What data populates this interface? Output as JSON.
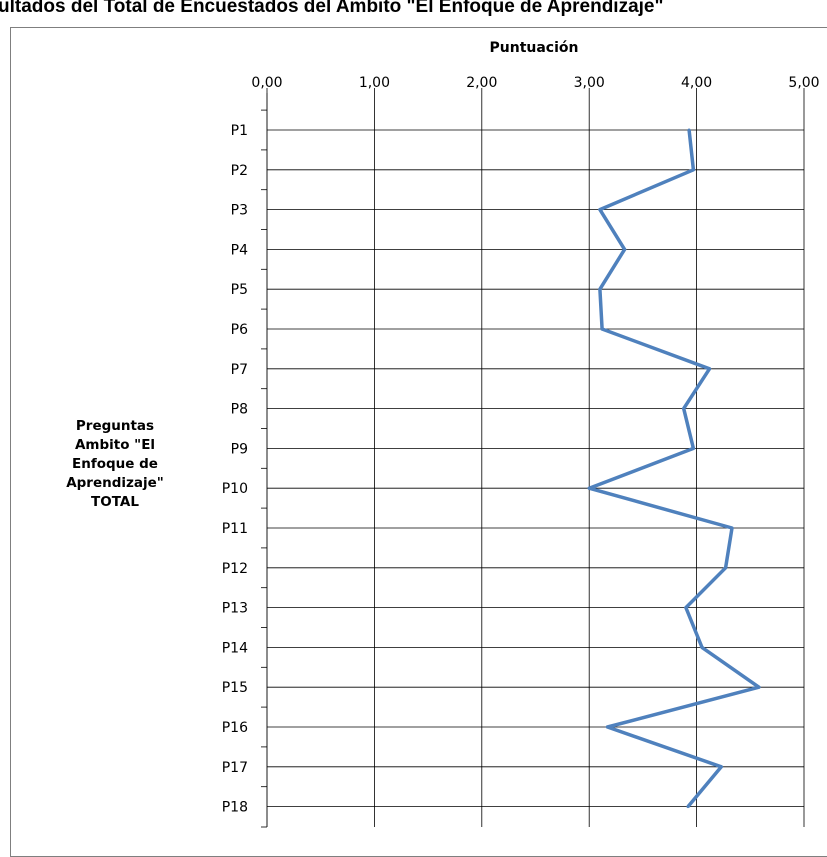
{
  "title": "ultados del Total de Encuestados del Ambito \"El Enfoque de Aprendizaje\"",
  "chart_data": {
    "type": "line",
    "orientation": "horizontal",
    "xlabel": "Puntuación",
    "ylabel_lines": [
      "Preguntas",
      "Ambito \"El",
      "Enfoque de",
      "Aprendizaje\"",
      "TOTAL"
    ],
    "xlim": [
      0,
      5
    ],
    "xticks": [
      "0,00",
      "1,00",
      "2,00",
      "3,00",
      "4,00",
      "5,00"
    ],
    "categories": [
      "P1",
      "P2",
      "P3",
      "P4",
      "P5",
      "P6",
      "P7",
      "P8",
      "P9",
      "P10",
      "P11",
      "P12",
      "P13",
      "P14",
      "P15",
      "P16",
      "P17",
      "P18"
    ],
    "values": [
      3.93,
      3.97,
      3.1,
      3.33,
      3.1,
      3.12,
      4.12,
      3.88,
      3.97,
      3.0,
      4.33,
      4.27,
      3.9,
      4.05,
      4.58,
      3.17,
      4.23,
      3.92
    ],
    "grid": true,
    "line_color": "#4F81BD"
  }
}
